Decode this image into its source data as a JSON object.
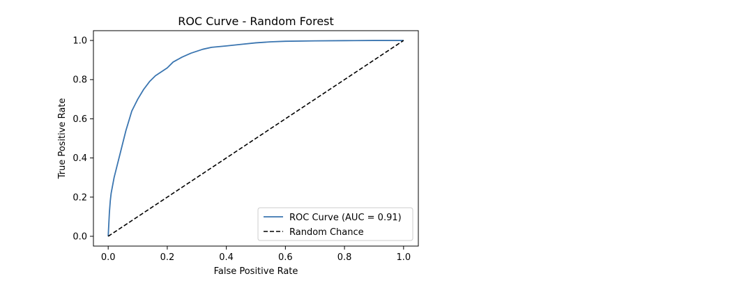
{
  "chart_data": {
    "type": "line",
    "title": "ROC Curve - Random Forest",
    "xlabel": "False Positive Rate",
    "ylabel": "True Positive Rate",
    "xlim": [
      -0.05,
      1.05
    ],
    "ylim": [
      -0.05,
      1.05
    ],
    "xticks": [
      "0.0",
      "0.2",
      "0.4",
      "0.6",
      "0.8",
      "1.0"
    ],
    "yticks": [
      "0.0",
      "0.2",
      "0.4",
      "0.6",
      "0.8",
      "1.0"
    ],
    "grid": false,
    "legend_position": "lower-right",
    "series": [
      {
        "name": "ROC Curve (AUC = 0.91)",
        "color": "#3a75b0",
        "style": "solid",
        "x": [
          0.0,
          0.002,
          0.004,
          0.007,
          0.01,
          0.015,
          0.02,
          0.03,
          0.04,
          0.05,
          0.06,
          0.07,
          0.08,
          0.09,
          0.1,
          0.12,
          0.14,
          0.16,
          0.18,
          0.2,
          0.22,
          0.25,
          0.28,
          0.32,
          0.35,
          0.4,
          0.45,
          0.5,
          0.55,
          0.6,
          0.7,
          0.8,
          0.9,
          1.0
        ],
        "y": [
          0.0,
          0.06,
          0.12,
          0.18,
          0.22,
          0.26,
          0.3,
          0.36,
          0.42,
          0.48,
          0.54,
          0.59,
          0.64,
          0.67,
          0.7,
          0.75,
          0.79,
          0.82,
          0.84,
          0.86,
          0.89,
          0.915,
          0.935,
          0.955,
          0.965,
          0.972,
          0.98,
          0.988,
          0.993,
          0.996,
          0.998,
          0.999,
          1.0,
          1.0
        ]
      },
      {
        "name": "Random Chance",
        "color": "#000000",
        "style": "dashed",
        "x": [
          0.0,
          1.0
        ],
        "y": [
          0.0,
          1.0
        ]
      }
    ]
  }
}
